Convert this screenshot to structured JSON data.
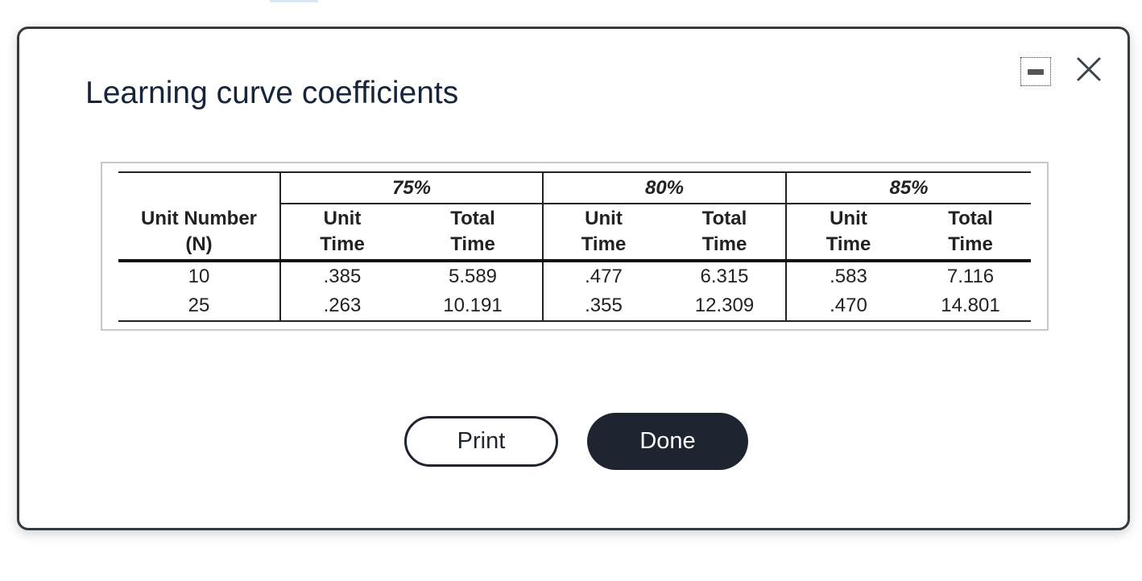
{
  "dialog": {
    "title": "Learning curve coefficients",
    "table": {
      "group_headers": [
        "75%",
        "80%",
        "85%"
      ],
      "column_headers": [
        [
          "Unit Number",
          "(N)"
        ],
        [
          "Unit",
          "Time"
        ],
        [
          "Total",
          "Time"
        ],
        [
          "Unit",
          "Time"
        ],
        [
          "Total",
          "Time"
        ],
        [
          "Unit",
          "Time"
        ],
        [
          "Total",
          "Time"
        ]
      ],
      "rows": [
        [
          "10",
          ".385",
          "5.589",
          ".477",
          "6.315",
          ".583",
          "7.116"
        ],
        [
          "25",
          ".263",
          "10.191",
          ".355",
          "12.309",
          ".470",
          "14.801"
        ]
      ]
    },
    "buttons": [
      "Print",
      "Done"
    ]
  }
}
